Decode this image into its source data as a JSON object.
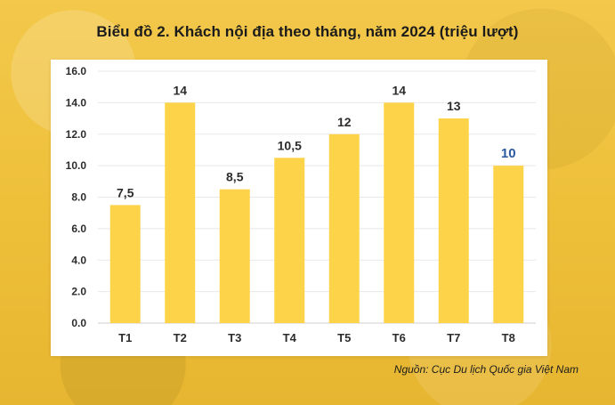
{
  "title": "Biểu đồ 2. Khách nội địa theo tháng, năm 2024 (triệu lượt)",
  "source": "Nguồn: Cục Du lịch Quốc gia Việt Nam",
  "colors": {
    "bar": "#fdd34a",
    "grid": "#e8e8e8",
    "axis": "#cfcfcf",
    "text": "#2c2c2c",
    "highlight_label": "#2c5aa0"
  },
  "chart_data": {
    "type": "bar",
    "title": "Biểu đồ 2. Khách nội địa theo tháng, năm 2024 (triệu lượt)",
    "xlabel": "",
    "ylabel": "",
    "categories": [
      "T1",
      "T2",
      "T3",
      "T4",
      "T5",
      "T6",
      "T7",
      "T8"
    ],
    "values": [
      7.5,
      14,
      8.5,
      10.5,
      12,
      14,
      13,
      10
    ],
    "value_labels": [
      "7,5",
      "14",
      "8,5",
      "10,5",
      "12",
      "14",
      "13",
      "10"
    ],
    "highlighted_label_index": 7,
    "ylim": [
      0,
      16
    ],
    "yticks": [
      0,
      2,
      4,
      6,
      8,
      10,
      12,
      14,
      16
    ],
    "ytick_labels": [
      "0.0",
      "2.0",
      "4.0",
      "6.0",
      "8.0",
      "10.0",
      "12.0",
      "14.0",
      "16.0"
    ],
    "grid": true,
    "legend": "none"
  }
}
